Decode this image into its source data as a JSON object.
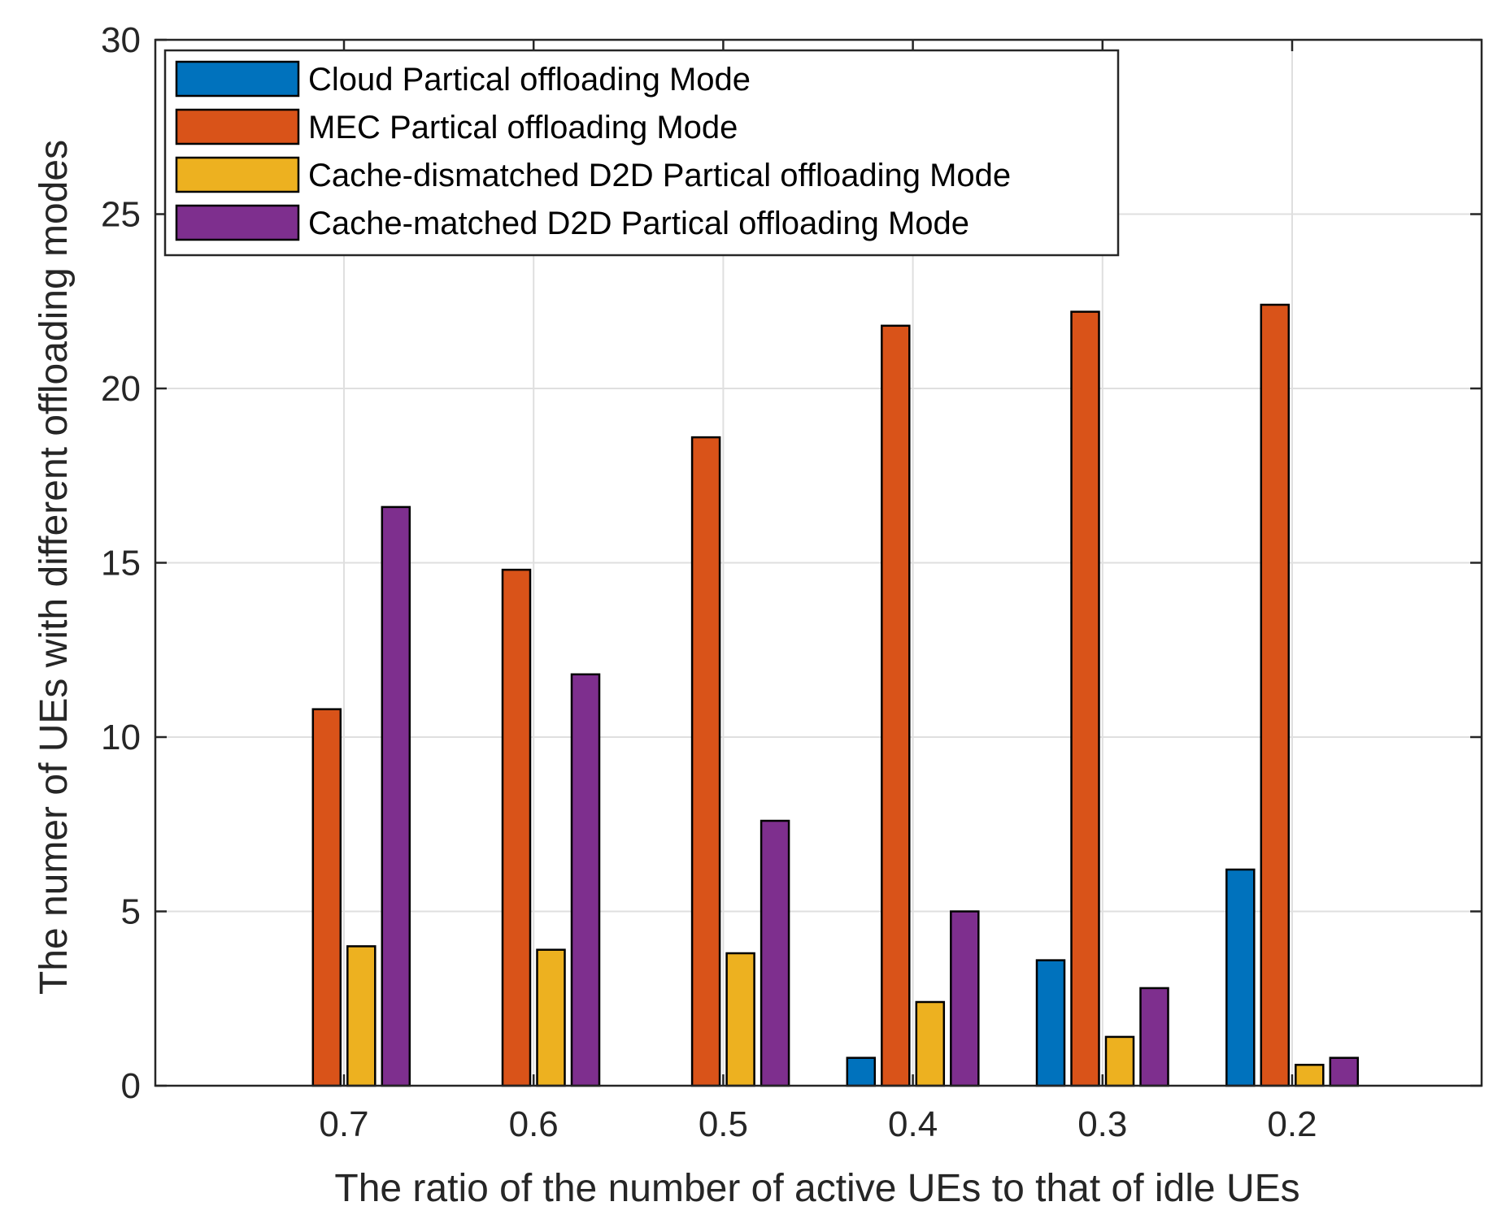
{
  "chart_data": {
    "type": "bar",
    "title": "",
    "xlabel": "The ratio of the number of active UEs to that of idle UEs",
    "ylabel": "The numer of UEs with different offloading modes",
    "categories": [
      "0.7",
      "0.6",
      "0.5",
      "0.4",
      "0.3",
      "0.2"
    ],
    "ylim": [
      0,
      30
    ],
    "yticks": [
      0,
      5,
      10,
      15,
      20,
      25,
      30
    ],
    "grid": true,
    "legend_position": "top-left",
    "series": [
      {
        "name": "Cloud Partical offloading Mode",
        "color": "#0072BD",
        "values": [
          0,
          0,
          0,
          0.8,
          3.6,
          6.2
        ]
      },
      {
        "name": "MEC Partical offloading Mode",
        "color": "#D95319",
        "values": [
          10.8,
          14.8,
          18.6,
          21.8,
          22.2,
          22.4
        ]
      },
      {
        "name": "Cache-dismatched D2D Partical offloading Mode",
        "color": "#EDB120",
        "values": [
          4.0,
          3.9,
          3.8,
          2.4,
          1.4,
          0.6
        ]
      },
      {
        "name": "Cache-matched D2D Partical offloading Mode",
        "color": "#7E2F8E",
        "values": [
          16.6,
          11.8,
          7.6,
          5.0,
          2.8,
          0.8
        ]
      }
    ]
  }
}
